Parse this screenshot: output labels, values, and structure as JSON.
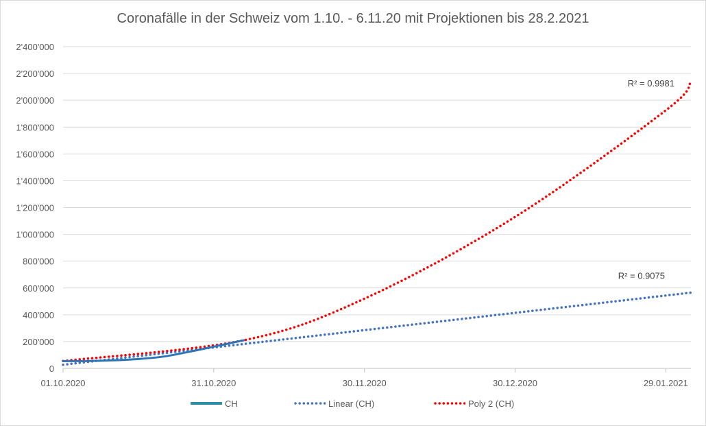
{
  "chart_data": {
    "type": "line",
    "title": "Coronafälle in der Schweiz vom 1.10. - 6.11.20 mit Projektionen bis 28.2.2021",
    "xlabel": "",
    "ylabel": "",
    "x_ticks": [
      "01.10.2020",
      "31.10.2020",
      "30.11.2020",
      "30.12.2020",
      "29.01.2021"
    ],
    "y_ticks": [
      "0",
      "200'000",
      "400'000",
      "600'000",
      "800'000",
      "1'000'000",
      "1'200'000",
      "1'400'000",
      "1'600'000",
      "1'800'000",
      "2'000'000",
      "2'200'000",
      "2'400'000"
    ],
    "ylim": [
      0,
      2400000
    ],
    "xlim": [
      "2020-10-01",
      "2021-02-03"
    ],
    "grid": true,
    "legend_position": "bottom",
    "series": [
      {
        "name": "CH",
        "color": "#2e75b6",
        "style": "solid",
        "x": [
          "2020-10-01",
          "2020-10-06",
          "2020-10-11",
          "2020-10-16",
          "2020-10-21",
          "2020-10-26",
          "2020-10-31",
          "2020-11-06"
        ],
        "values": [
          54000,
          55000,
          60000,
          70000,
          88000,
          123000,
          162000,
          210000
        ]
      },
      {
        "name": "Linear (CH)",
        "color": "#4472c4",
        "style": "dotted",
        "x": [
          "2020-10-01",
          "2021-02-03"
        ],
        "values": [
          27000,
          565000
        ]
      },
      {
        "name": "Poly 2 (CH)",
        "color": "#ff0000",
        "style": "dotted",
        "x": [
          "2020-10-01",
          "2020-11-06",
          "2020-11-30",
          "2020-12-30",
          "2021-01-29",
          "2021-02-03"
        ],
        "values": [
          55000,
          210000,
          520000,
          1130000,
          1925000,
          2135000
        ]
      }
    ],
    "annotations": [
      {
        "text": "R² = 0.9981",
        "series": "Poly 2 (CH)"
      },
      {
        "text": "R² = 0.9075",
        "series": "Linear (CH)"
      }
    ]
  }
}
